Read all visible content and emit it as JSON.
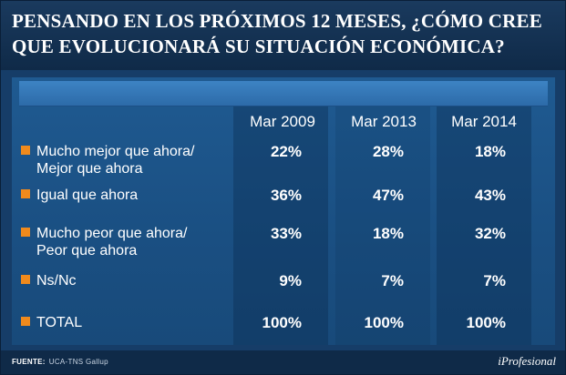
{
  "title": {
    "line1": "PENSANDO EN LOS PRÓXIMOS 12 MESES, ¿CÓMO CREE",
    "line2": "QUE EVOLUCIONARÁ SU SITUACIÓN ECONÓMICA?"
  },
  "colors": {
    "background": "#163d68",
    "bullet": "#f08a1c",
    "header_bar": "#3d83c4"
  },
  "chart_data": {
    "type": "table",
    "columns": [
      "Mar 2009",
      "Mar 2013",
      "Mar 2014"
    ],
    "rows": [
      {
        "label_lines": [
          "Mucho mejor que ahora/",
          "Mejor que ahora"
        ],
        "values": [
          "22%",
          "28%",
          "18%"
        ]
      },
      {
        "label_lines": [
          "Igual que ahora"
        ],
        "values": [
          "36%",
          "47%",
          "43%"
        ]
      },
      {
        "label_lines": [
          "Mucho peor que ahora/",
          "Peor que ahora"
        ],
        "values": [
          "33%",
          "18%",
          "32%"
        ]
      },
      {
        "label_lines": [
          "Ns/Nc"
        ],
        "values": [
          "9%",
          "7%",
          "7%"
        ]
      },
      {
        "label_lines": [
          "TOTAL"
        ],
        "values": [
          "100%",
          "100%",
          "100%"
        ]
      }
    ]
  },
  "footer": {
    "source_label": "FUENTE:",
    "source_text": "UCA-TNS Gallup",
    "brand": "iProfesional"
  }
}
